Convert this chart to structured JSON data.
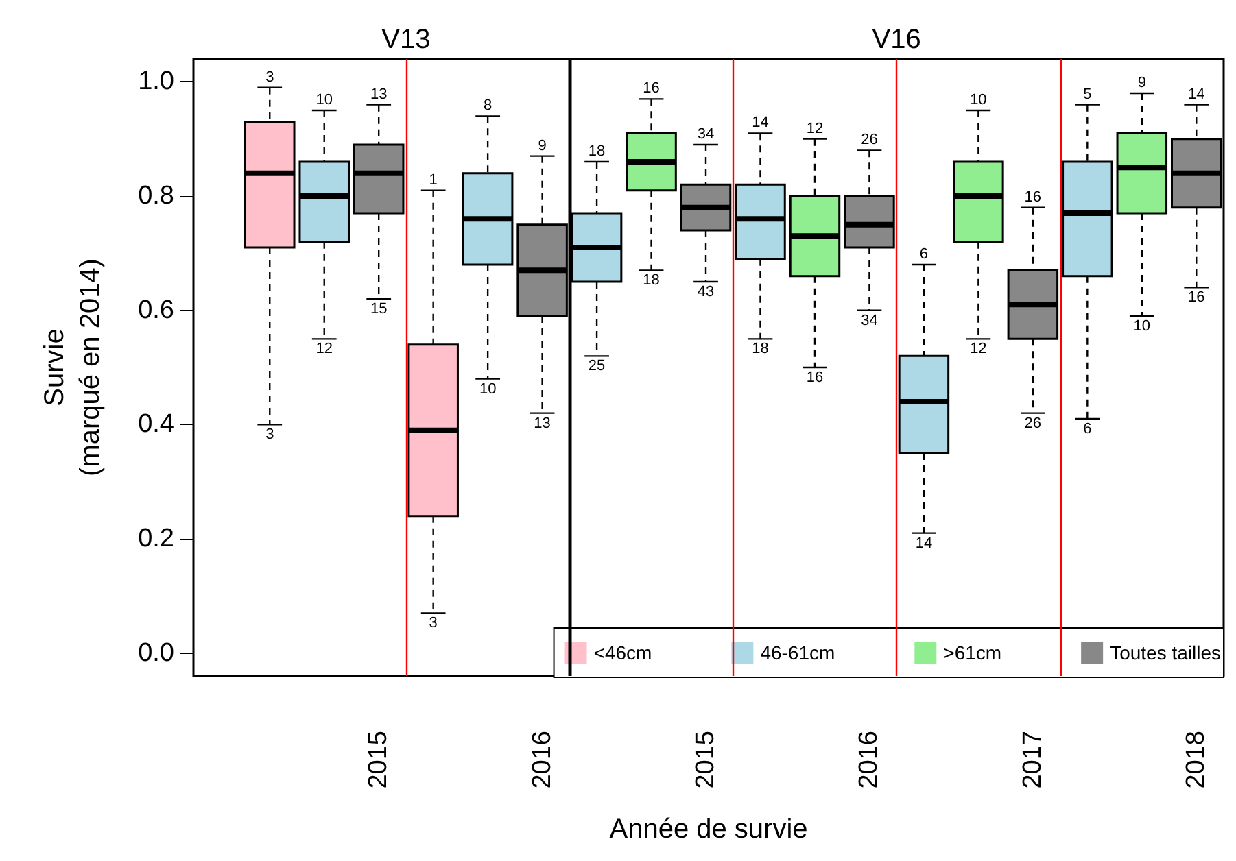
{
  "chart_data": {
    "type": "box",
    "xlabel": "Année de survie",
    "ylabel": "Survie\n(marqué en 2014)",
    "categories": [
      null,
      null,
      "2015",
      null,
      null,
      "2016",
      null,
      null,
      "2015",
      null,
      null,
      "2016",
      null,
      null,
      "2017",
      null,
      null,
      "2018"
    ],
    "ylim": [
      -0.04,
      1.04
    ],
    "yticks": [
      {
        "value": 0,
        "label": "0.0"
      },
      {
        "value": 0.2,
        "label": "0.2"
      },
      {
        "value": 0.4,
        "label": "0.4"
      },
      {
        "value": 0.6,
        "label": "0.6"
      },
      {
        "value": 0.8,
        "label": "0.8"
      },
      {
        "value": 1,
        "label": "1.0"
      }
    ],
    "legend": "bottom right",
    "grid": false,
    "series": [
      {
        "name": "<46cm",
        "color": "#ffc0cb",
        "boxes": [
          {
            "low": 0.4,
            "q1": 0.71,
            "median": 0.84,
            "q3": 0.93,
            "high": 0.99
          },
          null,
          null,
          {
            "low": 0.07,
            "q1": 0.24,
            "median": 0.39,
            "q3": 0.54,
            "high": 0.81
          },
          null,
          null,
          null,
          null,
          null,
          null,
          null,
          null,
          null,
          null,
          null,
          null,
          null,
          null
        ],
        "value_labels": [
          [
            "3",
            "3"
          ],
          null,
          null,
          [
            "1",
            "3"
          ],
          null,
          null,
          null,
          null,
          null,
          null,
          null,
          null,
          null,
          null,
          null,
          null,
          null,
          null
        ]
      },
      {
        "name": "46-61cm",
        "color": "#add8e6",
        "boxes": [
          null,
          {
            "low": 0.55,
            "q1": 0.72,
            "median": 0.8,
            "q3": 0.86,
            "high": 0.95
          },
          null,
          null,
          {
            "low": 0.48,
            "q1": 0.68,
            "median": 0.76,
            "q3": 0.84,
            "high": 0.94
          },
          null,
          {
            "low": 0.52,
            "q1": 0.65,
            "median": 0.71,
            "q3": 0.77,
            "high": 0.86
          },
          null,
          null,
          {
            "low": 0.55,
            "q1": 0.69,
            "median": 0.76,
            "q3": 0.82,
            "high": 0.91
          },
          null,
          null,
          {
            "low": 0.21,
            "q1": 0.35,
            "median": 0.44,
            "q3": 0.52,
            "high": 0.68
          },
          null,
          null,
          {
            "low": 0.41,
            "q1": 0.66,
            "median": 0.77,
            "q3": 0.86,
            "high": 0.96
          },
          null,
          null
        ],
        "value_labels": [
          null,
          [
            "10",
            "12"
          ],
          null,
          null,
          [
            "8",
            "10"
          ],
          null,
          [
            "18",
            "25"
          ],
          null,
          null,
          [
            "14",
            "18"
          ],
          null,
          null,
          [
            "6",
            "14"
          ],
          null,
          null,
          [
            "5",
            "6"
          ],
          null,
          null
        ]
      },
      {
        "name": ">61cm",
        "color": "#90ee90",
        "boxes": [
          null,
          null,
          null,
          null,
          null,
          null,
          null,
          {
            "low": 0.67,
            "q1": 0.81,
            "median": 0.86,
            "q3": 0.91,
            "high": 0.97
          },
          null,
          null,
          {
            "low": 0.5,
            "q1": 0.66,
            "median": 0.73,
            "q3": 0.8,
            "high": 0.9
          },
          null,
          null,
          {
            "low": 0.55,
            "q1": 0.72,
            "median": 0.8,
            "q3": 0.86,
            "high": 0.95
          },
          null,
          null,
          {
            "low": 0.59,
            "q1": 0.77,
            "median": 0.85,
            "q3": 0.91,
            "high": 0.98
          },
          null
        ],
        "value_labels": [
          null,
          null,
          null,
          null,
          null,
          null,
          null,
          [
            "16",
            "18"
          ],
          null,
          null,
          [
            "12",
            "16"
          ],
          null,
          null,
          [
            "10",
            "12"
          ],
          null,
          null,
          [
            "9",
            "10"
          ],
          null
        ]
      },
      {
        "name": "Toutes tailles",
        "color": "#888888",
        "boxes": [
          null,
          null,
          {
            "low": 0.62,
            "q1": 0.77,
            "median": 0.84,
            "q3": 0.89,
            "high": 0.96
          },
          null,
          null,
          {
            "low": 0.42,
            "q1": 0.59,
            "median": 0.67,
            "q3": 0.75,
            "high": 0.87
          },
          null,
          null,
          {
            "low": 0.65,
            "q1": 0.74,
            "median": 0.78,
            "q3": 0.82,
            "high": 0.89
          },
          null,
          null,
          {
            "low": 0.6,
            "q1": 0.71,
            "median": 0.75,
            "q3": 0.8,
            "high": 0.88
          },
          null,
          null,
          {
            "low": 0.42,
            "q1": 0.55,
            "median": 0.61,
            "q3": 0.67,
            "high": 0.78
          },
          null,
          null,
          {
            "low": 0.64,
            "q1": 0.78,
            "median": 0.84,
            "q3": 0.9,
            "high": 0.96
          }
        ],
        "value_labels": [
          null,
          null,
          [
            "13",
            "15"
          ],
          null,
          null,
          [
            "9",
            "13"
          ],
          null,
          null,
          [
            "34",
            "43"
          ],
          null,
          null,
          [
            "26",
            "34"
          ],
          null,
          null,
          [
            "16",
            "26"
          ],
          null,
          null,
          [
            "14",
            "16"
          ]
        ]
      }
    ],
    "annotations": [
      "V13",
      "V16"
    ]
  }
}
